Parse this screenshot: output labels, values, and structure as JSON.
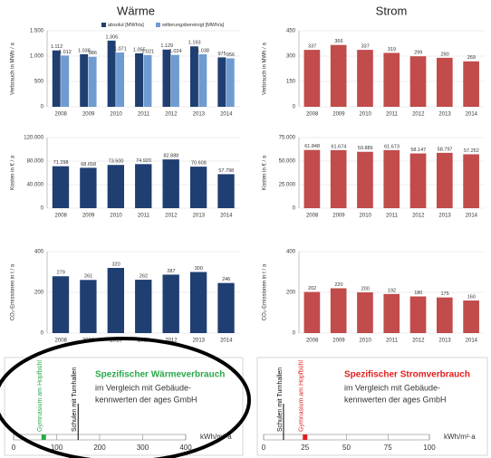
{
  "headings": [
    "Wärme",
    "Strom"
  ],
  "chart_data": [
    {
      "type": "bar",
      "ylabel": "Verbrauch in MWh / a",
      "categories": [
        "2008",
        "2009",
        "2010",
        "2011",
        "2012",
        "2013",
        "2014"
      ],
      "series": [
        {
          "name": "absolut [MWh/a]",
          "color": "#1f3f73",
          "values": [
            1112,
            1038,
            1306,
            1055,
            1129,
            1193,
            975
          ],
          "value_labels": [
            "1.112",
            "1.038",
            "1.306",
            "1.055",
            "1.129",
            "1.193",
            "975"
          ]
        },
        {
          "name": "witterungsbereinigt [MWh/a]",
          "color": "#6e9bd1",
          "values": [
            1012,
            986,
            1071,
            1021,
            1024,
            1038,
            956
          ],
          "value_labels": [
            "1.012",
            "986",
            "1.071",
            "1.021",
            "1.024",
            "1.038",
            "956"
          ]
        }
      ],
      "ylim": [
        0,
        1500
      ],
      "yticks": [
        0,
        500,
        {
          "value": 1000,
          "label": "1.000"
        },
        {
          "value": 1500,
          "label": "1.500"
        }
      ],
      "grid": true,
      "legend": "top"
    },
    {
      "type": "bar",
      "ylabel": "Kosten in € / a",
      "categories": [
        "2008",
        "2009",
        "2010",
        "2011",
        "2012",
        "2013",
        "2014"
      ],
      "values": [
        71298,
        68658,
        73500,
        74920,
        82888,
        70608,
        57798
      ],
      "value_labels": [
        "71.298",
        "68.658",
        "73.500",
        "74.920",
        "82.888",
        "70.608",
        "57.798"
      ],
      "color": "#1f3f73",
      "ylim": [
        0,
        120000
      ],
      "yticks": [
        0,
        {
          "value": 40000,
          "label": "40.000"
        },
        {
          "value": 80000,
          "label": "80.000"
        },
        {
          "value": 120000,
          "label": "120.000"
        }
      ],
      "grid": true
    },
    {
      "type": "bar",
      "ylabel": "CO₂-Emissionen in t / a",
      "categories": [
        "2008",
        "2009",
        "2010",
        "2011",
        "2012",
        "2013",
        "2014"
      ],
      "values": [
        279,
        261,
        320,
        262,
        287,
        300,
        246
      ],
      "color": "#1f3f73",
      "ylim": [
        0,
        400
      ],
      "yticks": [
        0,
        200,
        400
      ],
      "grid": true
    },
    {
      "type": "bar",
      "ylabel": "Verbrauch in MWh / a",
      "categories": [
        "2008",
        "2009",
        "2010",
        "2011",
        "2012",
        "2013",
        "2014"
      ],
      "values": [
        337,
        366,
        337,
        319,
        299,
        290,
        269
      ],
      "color": "#c24b4b",
      "ylim": [
        0,
        450
      ],
      "yticks": [
        0,
        150,
        300,
        450
      ],
      "grid": true
    },
    {
      "type": "bar",
      "ylabel": "Kosten in € / a",
      "categories": [
        "2008",
        "2009",
        "2010",
        "2011",
        "2012",
        "2013",
        "2014"
      ],
      "values": [
        61848,
        61674,
        59889,
        61673,
        58147,
        58797,
        57252
      ],
      "value_labels": [
        "61.848",
        "61.674",
        "59.889",
        "61.673",
        "58.147",
        "58.797",
        "57.252"
      ],
      "color": "#c24b4b",
      "ylim": [
        0,
        75000
      ],
      "yticks": [
        0,
        {
          "value": 25000,
          "label": "25.000"
        },
        {
          "value": 50000,
          "label": "50.000"
        },
        {
          "value": 75000,
          "label": "75.000"
        }
      ],
      "grid": true
    },
    {
      "type": "bar",
      "ylabel": "CO₂-Emissionen in t / a",
      "categories": [
        "2008",
        "2009",
        "2010",
        "2011",
        "2012",
        "2013",
        "2014"
      ],
      "values": [
        202,
        220,
        200,
        192,
        180,
        175,
        160
      ],
      "color": "#c24b4b",
      "ylim": [
        0,
        400
      ],
      "yticks": [
        0,
        200,
        400
      ],
      "grid": true
    },
    {
      "type": "benchmark",
      "title": "Spezifischer Wärmeverbrauch",
      "title_color": "#2aa84a",
      "subtitle": [
        "im Vergleich mit Gebäude-",
        "kennwerten der ages GmbH"
      ],
      "xlabel": "kWh/m²·a",
      "series": [
        {
          "name": "Gymnasium am Hopfbühl",
          "color": "#2aa84a",
          "values": [
            70
          ]
        },
        {
          "name": "Schulen mit Turnhallen",
          "color": "#000000",
          "values": [
            150
          ]
        }
      ],
      "xlim": [
        0,
        400
      ],
      "xticks": [
        0,
        100,
        200,
        300,
        400
      ]
    },
    {
      "type": "benchmark",
      "title": "Spezifischer Stromverbrauch",
      "title_color": "#e02020",
      "subtitle": [
        "im Vergleich mit Gebäude-",
        "kennwerten der ages GmbH"
      ],
      "xlabel": "kWh/m²·a",
      "series": [
        {
          "name": "Gymnasium am Hopfbühl",
          "color": "#e02020",
          "values": [
            25
          ]
        },
        {
          "name": "Schulen mit Turnhallen",
          "color": "#000000",
          "values": [
            12
          ]
        }
      ],
      "xlim": [
        0,
        100
      ],
      "xticks": [
        0,
        25,
        50,
        75,
        100
      ]
    }
  ]
}
